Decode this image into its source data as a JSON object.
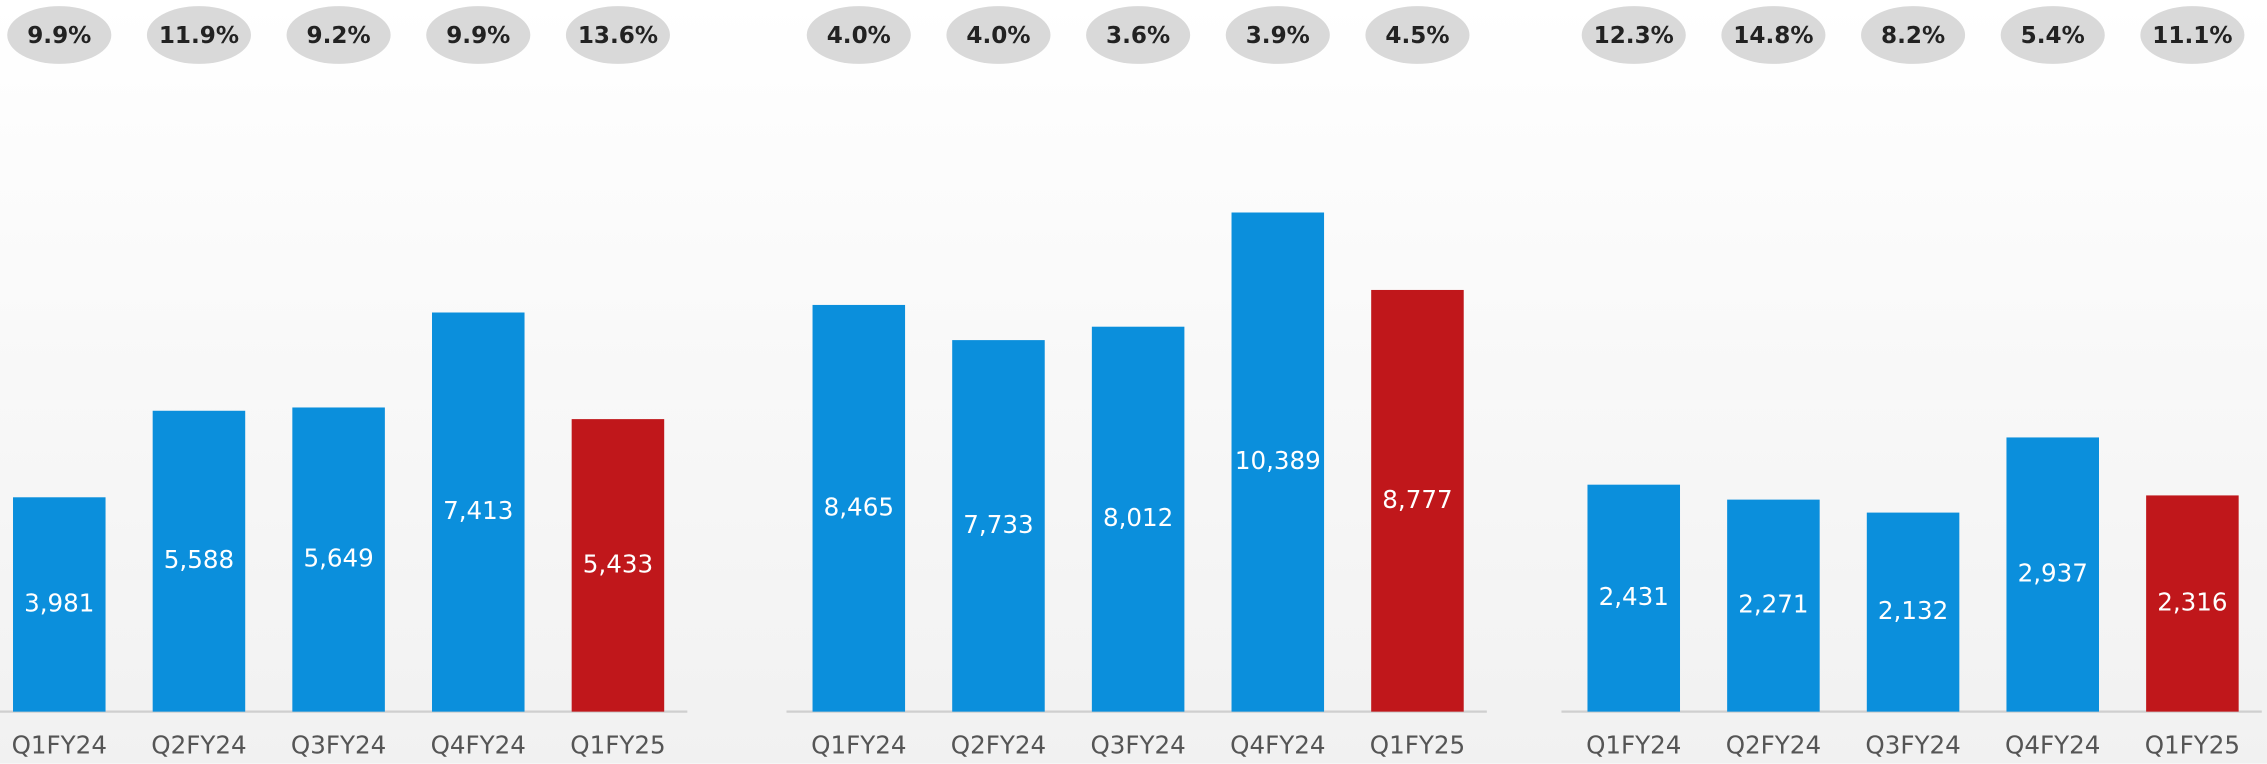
{
  "chart_data": [
    {
      "type": "bar",
      "categories": [
        "Q1FY24",
        "Q2FY24",
        "Q3FY24",
        "Q4FY24",
        "Q1FY25"
      ],
      "values": [
        3981,
        5588,
        5649,
        7413,
        5433
      ],
      "value_labels": [
        "3,981",
        "5,588",
        "5,649",
        "7,413",
        "5,433"
      ],
      "annotations": [
        "9.9%",
        "11.9%",
        "9.2%",
        "9.9%",
        "13.6%"
      ],
      "colors": [
        "#0b8fdc",
        "#0b8fdc",
        "#0b8fdc",
        "#0b8fdc",
        "#c0171b"
      ],
      "ylim": [
        0,
        11600
      ]
    },
    {
      "type": "bar",
      "categories": [
        "Q1FY24",
        "Q2FY24",
        "Q3FY24",
        "Q4FY24",
        "Q1FY25"
      ],
      "values": [
        8465,
        7733,
        8012,
        10389,
        8777
      ],
      "value_labels": [
        "8,465",
        "7,733",
        "8,012",
        "10,389",
        "8,777"
      ],
      "annotations": [
        "4.0%",
        "4.0%",
        "3.6%",
        "3.9%",
        "4.5%"
      ],
      "colors": [
        "#0b8fdc",
        "#0b8fdc",
        "#0b8fdc",
        "#0b8fdc",
        "#c0171b"
      ],
      "ylim": [
        0,
        13000
      ]
    },
    {
      "type": "bar",
      "categories": [
        "Q1FY24",
        "Q2FY24",
        "Q3FY24",
        "Q4FY24",
        "Q1FY25"
      ],
      "values": [
        2431,
        2271,
        2132,
        2937,
        2316
      ],
      "value_labels": [
        "2,431",
        "2,271",
        "2,132",
        "2,937",
        "2,316"
      ],
      "annotations": [
        "12.3%",
        "14.8%",
        "8.2%",
        "5.4%",
        "11.1%"
      ],
      "colors": [
        "#0b8fdc",
        "#0b8fdc",
        "#0b8fdc",
        "#0b8fdc",
        "#c0171b"
      ],
      "ylim": [
        0,
        6690
      ]
    }
  ]
}
